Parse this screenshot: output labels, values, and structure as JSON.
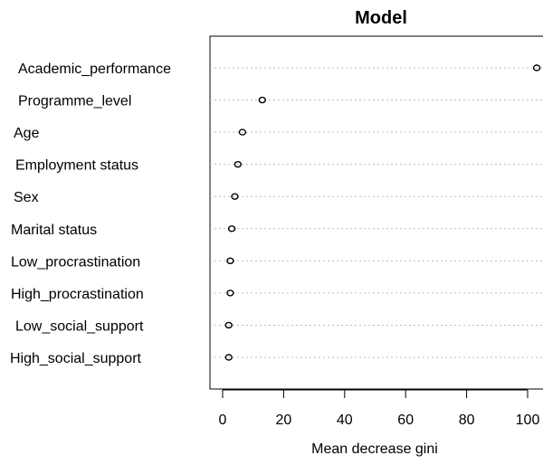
{
  "chart_data": {
    "type": "scatter",
    "title": "Model",
    "xlabel": "Mean decrease gini",
    "ylabel": "",
    "xlim": [
      0,
      100
    ],
    "xticks": [
      0,
      20,
      40,
      60,
      80,
      100
    ],
    "grid": "dotted horizontal guide lines",
    "categories": [
      "Academic_performance",
      "Programme_level",
      "Age",
      "Employment status",
      "Sex",
      "Marital status",
      "Low_procrastination",
      "High_procrastination",
      "Low_social_support",
      "High_social_support"
    ],
    "values": [
      103,
      13,
      6.5,
      5,
      4,
      3,
      2.5,
      2.5,
      2,
      2
    ]
  }
}
